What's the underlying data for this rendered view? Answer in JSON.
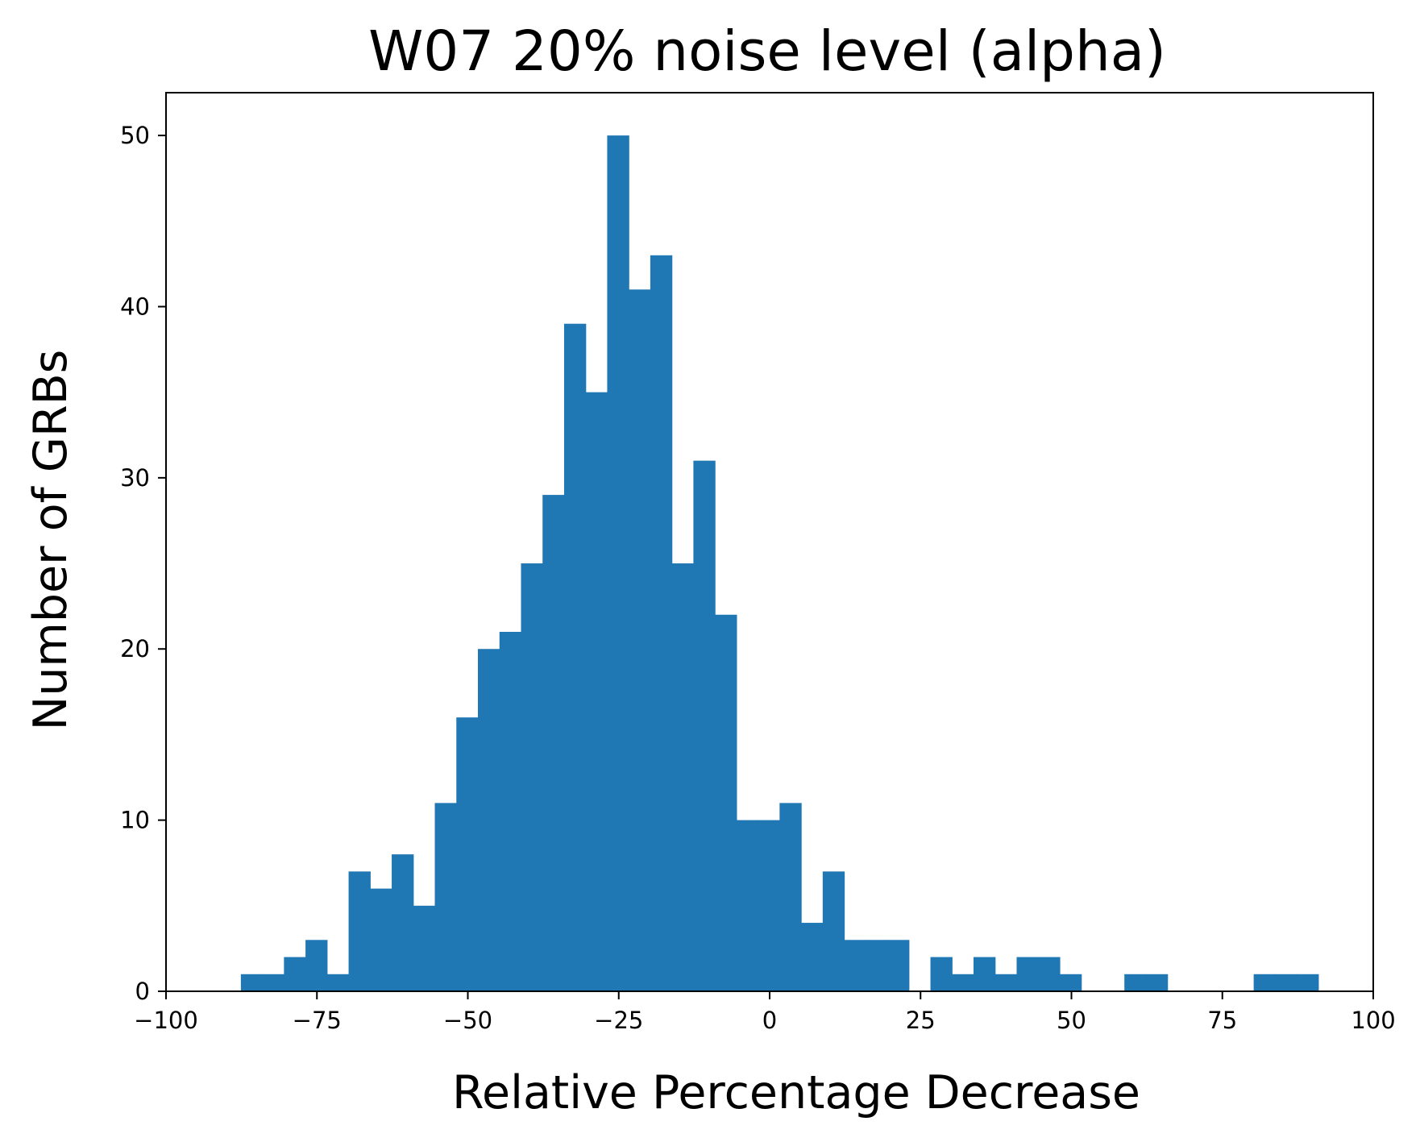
{
  "chart_data": {
    "type": "bar",
    "title": "W07 20% noise level (alpha)",
    "xlabel": "Relative Percentage Decrease",
    "ylabel": "Number of GRBs",
    "xlim": [
      -100,
      100
    ],
    "ylim": [
      0,
      52.5
    ],
    "xticks": [
      -100,
      -75,
      -50,
      -25,
      0,
      25,
      50,
      75,
      100
    ],
    "xtick_labels": [
      "−100",
      "−75",
      "−50",
      "−25",
      "0",
      "25",
      "50",
      "75",
      "100"
    ],
    "yticks": [
      0,
      10,
      20,
      30,
      40,
      50
    ],
    "ytick_labels": [
      "0",
      "10",
      "20",
      "30",
      "40",
      "50"
    ],
    "grid": false,
    "bar_color": "#1f77b4",
    "bin_start": -87.6,
    "bin_width": 3.57,
    "values": [
      1,
      1,
      2,
      3,
      1,
      7,
      6,
      8,
      5,
      11,
      16,
      20,
      21,
      25,
      29,
      39,
      35,
      50,
      41,
      43,
      25,
      31,
      22,
      10,
      10,
      11,
      4,
      7,
      3,
      3,
      3,
      0,
      2,
      1,
      2,
      1,
      2,
      2,
      1,
      0,
      0,
      1,
      1,
      0,
      0,
      0,
      0,
      1,
      1,
      1
    ]
  }
}
